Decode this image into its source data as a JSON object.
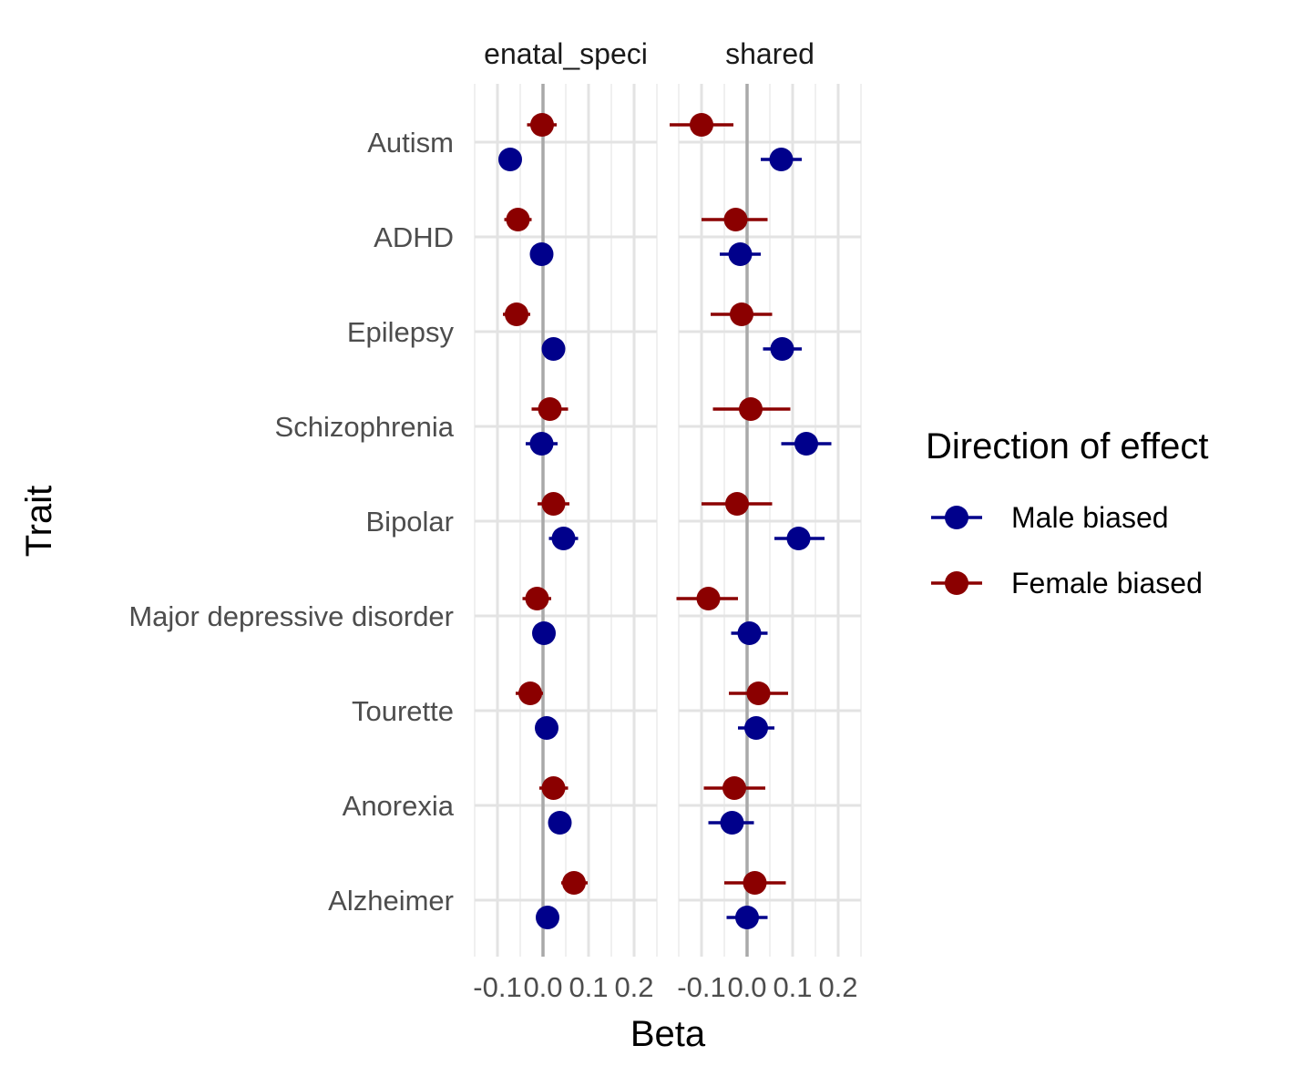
{
  "chart_data": {
    "type": "scatter",
    "subtype": "forest-plot with horizontal error bars, faceted",
    "xlabel": "Beta",
    "ylabel": "Trait",
    "xlim": [
      -0.15,
      0.25
    ],
    "x_ticks": [
      -0.1,
      0.0,
      0.1,
      0.2
    ],
    "x_tick_labels": [
      "-0.1",
      "0.0",
      "0.1",
      "0.2"
    ],
    "reference_line_x": 0,
    "grid": true,
    "legend": {
      "title": "Direction of effect",
      "position": "right",
      "entries": [
        {
          "name": "Male biased",
          "color": "#00008B"
        },
        {
          "name": "Female biased",
          "color": "#8B0000"
        }
      ]
    },
    "categories": [
      "Autism",
      "ADHD",
      "Epilepsy",
      "Schizophrenia",
      "Bipolar",
      "Major depressive disorder",
      "Tourette",
      "Anorexia",
      "Alzheimer"
    ],
    "facets": [
      {
        "label": "enatal_speci",
        "series": [
          {
            "name": "Female biased",
            "values": [
              -0.002,
              -0.055,
              -0.058,
              0.015,
              0.023,
              -0.013,
              -0.028,
              0.023,
              0.068
            ],
            "ci_low": [
              -0.035,
              -0.085,
              -0.088,
              -0.025,
              -0.012,
              -0.045,
              -0.06,
              -0.008,
              0.04
            ],
            "ci_high": [
              0.03,
              -0.025,
              -0.028,
              0.055,
              0.058,
              0.018,
              0.0,
              0.055,
              0.098
            ]
          },
          {
            "name": "Male biased",
            "values": [
              -0.072,
              -0.003,
              0.023,
              -0.003,
              0.045,
              0.002,
              0.008,
              0.037,
              0.01
            ],
            "ci_low": [
              -0.08,
              -0.01,
              0.013,
              -0.038,
              0.013,
              -0.008,
              -0.002,
              0.027,
              0.0
            ],
            "ci_high": [
              -0.064,
              0.004,
              0.033,
              0.032,
              0.077,
              0.012,
              0.018,
              0.047,
              0.02
            ]
          }
        ]
      },
      {
        "label": "shared",
        "series": [
          {
            "name": "Female biased",
            "values": [
              -0.1,
              -0.025,
              -0.012,
              0.008,
              -0.022,
              -0.085,
              0.025,
              -0.028,
              0.017
            ],
            "ci_low": [
              -0.17,
              -0.1,
              -0.08,
              -0.075,
              -0.1,
              -0.155,
              -0.04,
              -0.095,
              -0.05
            ],
            "ci_high": [
              -0.03,
              0.045,
              0.055,
              0.095,
              0.055,
              -0.02,
              0.09,
              0.04,
              0.085
            ]
          },
          {
            "name": "Male biased",
            "values": [
              0.075,
              -0.015,
              0.077,
              0.13,
              0.113,
              0.005,
              0.02,
              -0.033,
              0.0
            ],
            "ci_low": [
              0.03,
              -0.06,
              0.035,
              0.075,
              0.06,
              -0.035,
              -0.02,
              -0.085,
              -0.045
            ],
            "ci_high": [
              0.12,
              0.03,
              0.12,
              0.185,
              0.17,
              0.045,
              0.06,
              0.015,
              0.045
            ]
          }
        ]
      }
    ]
  }
}
